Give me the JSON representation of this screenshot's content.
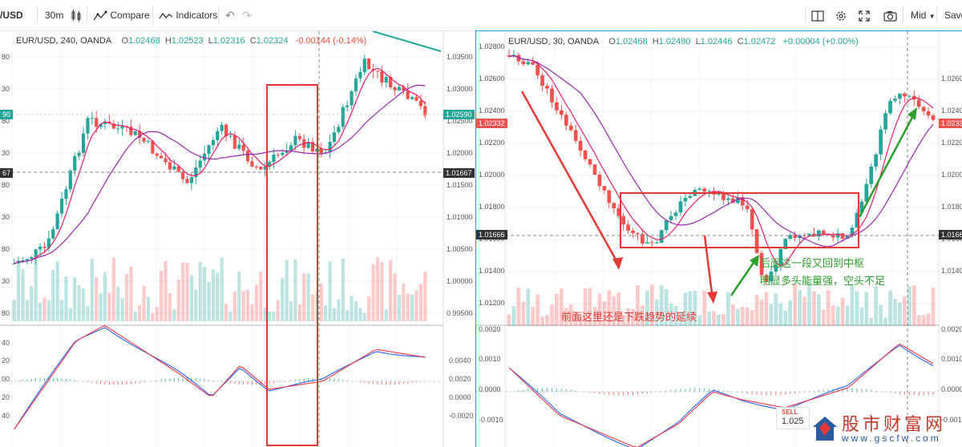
{
  "toolbar": {
    "symbol": "/USD",
    "interval": "30m",
    "compare_label": "Compare",
    "indicators_label": "Indicators",
    "mid_label": "Mid",
    "save_label": "Save",
    "icons": [
      "candles-icon",
      "compare-icon",
      "indicators-icon",
      "undo-icon",
      "redo-icon",
      "layout-icon",
      "gear-icon",
      "fullscreen-icon",
      "camera-icon",
      "chevron-down-icon"
    ]
  },
  "left_chart": {
    "symbol": "EUR/USD, 240, OANDA",
    "o_label": "O",
    "o": "1.02468",
    "h_label": "H",
    "h": "1.02523",
    "l_label": "L",
    "l": "1.02316",
    "c_label": "C",
    "c": "1.02324",
    "change": "-0.00144 (-0.14%)",
    "price_badge_top": "1.02590",
    "price_badge_left": "90",
    "crosshair_price": "1.01667",
    "crosshair_left": "67",
    "price_axis": [
      "1.03500",
      "1.03000",
      "1.02500",
      "1.02000",
      "1.01500",
      "1.01000",
      "1.00500",
      "1.00000",
      "0.99500"
    ],
    "left_axis": [
      "80",
      "30",
      "80",
      "30",
      "80",
      "30",
      "80",
      "30",
      "80"
    ],
    "macd_axis": [
      "0.0040",
      "0.0020",
      "0.0000",
      "-0.0020"
    ],
    "macd_left_axis": [
      "40",
      "20",
      "00",
      "20",
      "40"
    ]
  },
  "right_chart": {
    "symbol": "EUR/USD, 30, OANDA",
    "o_label": "O",
    "o": "1.02468",
    "h_label": "H",
    "h": "1.02490",
    "l_label": "L",
    "l": "1.02446",
    "c_label": "C",
    "c": "1.02472",
    "change": "+0.00004 (+0.00%)",
    "price_badge_left": "1.02332",
    "price_badge_right": "1.0233",
    "crosshair_left": "1.01666",
    "crosshair_right": "1.0166",
    "price_axis_left": [
      "1.02800",
      "1.02600",
      "1.02400",
      "1.02200",
      "1.02000",
      "1.01800",
      "1.01600",
      "1.01400",
      "1.01200"
    ],
    "price_axis_right": [
      "1.0260",
      "1.0240",
      "1.0220",
      "1.0200",
      "1.0180",
      "1.0160",
      "1.0140"
    ],
    "macd_axis_left": [
      "0.0020",
      "0.0010",
      "0.0000",
      "-0.0010"
    ],
    "macd_axis_right": [
      "0.0020",
      "0.0010",
      "0.0000",
      "-0.0010"
    ],
    "sell_label": "SELL",
    "sell_value": "1.025"
  },
  "annotations": {
    "red_text": "前面这里还是下跌趋势的延续",
    "green_line1": "后面这一段又回到中枢",
    "green_line2": "明显多头能量强，空头不足"
  },
  "watermark": {
    "title": "股市财富网",
    "url": "www.gscfw.com"
  },
  "colors": {
    "up": "#26a69a",
    "down": "#ef5350",
    "ma_fast": "#e91e63",
    "ma_slow": "#9c27b0",
    "annotation_red": "#e53935",
    "annotation_green": "#2e9e2e",
    "accent": "#2196f3"
  }
}
